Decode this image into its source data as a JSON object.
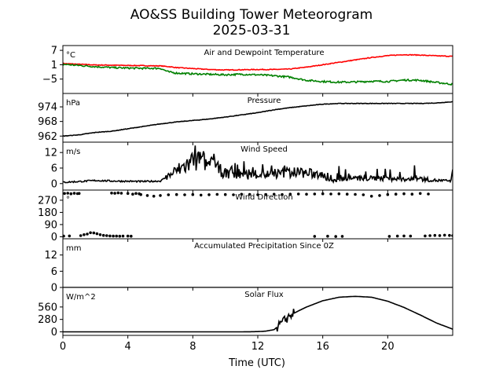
{
  "chart_data": {
    "type": "line",
    "title": "AO&SS Building Tower Meteorogram",
    "subtitle": "2025-03-31",
    "xlabel": "Time (UTC)",
    "x_ticks": [
      0,
      4,
      8,
      12,
      16,
      20
    ],
    "xlim": [
      0,
      24
    ],
    "panels": [
      {
        "id": "temperature",
        "title": "Air and Dewpoint Temperature",
        "unit": "°C",
        "ylim": [
          -11,
          9
        ],
        "y_ticks": [
          7,
          1,
          -5
        ],
        "y_tick_labels": [
          "7",
          "1",
          "−5"
        ],
        "series": [
          {
            "color": "#ff0000",
            "noise": 0.15,
            "x": [
              0,
              1,
              2,
              3,
              4,
              5,
              6,
              6.5,
              7,
              8,
              9,
              10,
              11,
              12,
              13,
              14,
              15,
              16,
              17,
              18,
              19,
              20,
              21,
              22,
              23,
              24
            ],
            "y": [
              1.5,
              1.2,
              0.9,
              0.8,
              0.7,
              0.6,
              0.5,
              0.2,
              -0.2,
              -0.6,
              -1.0,
              -1.2,
              -1.1,
              -1.0,
              -1.0,
              -0.8,
              0.0,
              1.0,
              2.0,
              3.0,
              4.0,
              4.8,
              5.2,
              5.0,
              4.7,
              4.5
            ]
          },
          {
            "color": "#008000",
            "noise": 0.35,
            "x": [
              0,
              1,
              2,
              3,
              4,
              5,
              6,
              6.5,
              7,
              8,
              9,
              10,
              11,
              12,
              13,
              14,
              15,
              16,
              17,
              18,
              19,
              20,
              21,
              22,
              23,
              24
            ],
            "y": [
              1.2,
              0.7,
              0.2,
              -0.2,
              -0.4,
              -0.5,
              -0.5,
              -2.0,
              -2.5,
              -2.8,
              -3.0,
              -3.2,
              -3.0,
              -3.2,
              -3.6,
              -4.2,
              -5.5,
              -6.0,
              -6.3,
              -6.2,
              -5.9,
              -6.0,
              -5.4,
              -5.5,
              -6.4,
              -7.2
            ]
          }
        ]
      },
      {
        "id": "pressure",
        "title": "Pressure",
        "unit": "hPa",
        "ylim": [
          959.5,
          979.5
        ],
        "y_ticks": [
          974,
          968,
          962
        ],
        "y_tick_labels": [
          "974",
          "968",
          "962"
        ],
        "series": [
          {
            "color": "#000000",
            "noise": 0.1,
            "x": [
              0,
              1,
              2,
              3,
              4,
              5,
              6,
              7,
              8,
              9,
              10,
              11,
              12,
              13,
              14,
              15,
              16,
              17,
              18,
              19,
              20,
              21,
              22,
              23,
              24
            ],
            "y": [
              962.0,
              962.5,
              963.5,
              964.0,
              965.0,
              966.0,
              967.0,
              967.8,
              968.4,
              969.0,
              969.8,
              970.7,
              971.6,
              972.8,
              973.7,
              974.4,
              975.1,
              975.4,
              975.4,
              975.4,
              975.4,
              975.4,
              975.4,
              975.6,
              976.1
            ]
          }
        ]
      },
      {
        "id": "wind_speed",
        "title": "Wind Speed",
        "unit": "m/s",
        "ylim": [
          -2.5,
          16
        ],
        "y_ticks": [
          12,
          6,
          0
        ],
        "y_tick_labels": [
          "12",
          "6",
          "0"
        ],
        "series": [
          {
            "color": "#000000",
            "noise": 0.0,
            "gusty": true,
            "x": [
              0,
              1,
              2,
              3,
              4,
              5,
              6,
              6.5,
              7,
              8,
              8.5,
              9,
              10,
              11,
              12,
              13,
              14,
              15,
              16,
              16.5,
              17,
              18,
              19,
              20,
              21,
              22,
              23,
              24
            ],
            "y": [
              0.5,
              0.8,
              1.2,
              1.0,
              0.9,
              0.8,
              1.0,
              3.0,
              5.0,
              8.5,
              9.0,
              7.5,
              4.0,
              3.0,
              3.5,
              3.5,
              4.5,
              4.0,
              3.5,
              0.8,
              1.5,
              2.0,
              2.0,
              2.2,
              1.5,
              1.8,
              1.2,
              1.0
            ]
          }
        ]
      },
      {
        "id": "wind_direction",
        "title": "Wind Direction",
        "unit": "°",
        "ylim": [
          -15,
          345
        ],
        "y_ticks": [
          270,
          180,
          90,
          0
        ],
        "y_tick_labels": [
          "270",
          "180",
          "90",
          "0"
        ],
        "scatter": true,
        "points": [
          [
            0.1,
            320
          ],
          [
            0.3,
            322
          ],
          [
            0.5,
            318
          ],
          [
            0.7,
            321
          ],
          [
            0.9,
            319
          ],
          [
            1.0,
            320
          ],
          [
            0.05,
            5
          ],
          [
            0.4,
            6
          ],
          [
            1.1,
            8
          ],
          [
            1.3,
            15
          ],
          [
            1.5,
            20
          ],
          [
            1.7,
            30
          ],
          [
            1.9,
            28
          ],
          [
            2.1,
            22
          ],
          [
            2.3,
            15
          ],
          [
            2.5,
            10
          ],
          [
            2.7,
            8
          ],
          [
            2.9,
            6
          ],
          [
            3.1,
            5
          ],
          [
            3.3,
            5
          ],
          [
            3.5,
            4
          ],
          [
            3.7,
            5
          ],
          [
            4.0,
            5
          ],
          [
            4.2,
            4
          ],
          [
            3.0,
            323
          ],
          [
            3.2,
            321
          ],
          [
            3.4,
            324
          ],
          [
            3.6,
            322
          ],
          [
            4.5,
            320
          ],
          [
            4.7,
            318
          ],
          [
            4.0,
            320
          ],
          [
            4.3,
            315
          ],
          [
            4.8,
            312
          ],
          [
            5.2,
            305
          ],
          [
            5.6,
            300
          ],
          [
            6.0,
            305
          ],
          [
            6.5,
            310
          ],
          [
            7.0,
            312
          ],
          [
            7.5,
            310
          ],
          [
            8.0,
            312
          ],
          [
            8.5,
            308
          ],
          [
            9.0,
            311
          ],
          [
            9.5,
            313
          ],
          [
            10.0,
            312
          ],
          [
            10.5,
            310
          ],
          [
            11.0,
            314
          ],
          [
            11.5,
            313
          ],
          [
            12.0,
            311
          ],
          [
            12.5,
            312
          ],
          [
            13.0,
            314
          ],
          [
            13.5,
            312
          ],
          [
            14.0,
            315
          ],
          [
            14.5,
            316
          ],
          [
            15.0,
            314
          ],
          [
            15.5,
            316
          ],
          [
            16.0,
            318
          ],
          [
            16.5,
            316
          ],
          [
            17.0,
            317
          ],
          [
            17.5,
            315
          ],
          [
            18.0,
            313
          ],
          [
            18.5,
            310
          ],
          [
            19.0,
            300
          ],
          [
            19.5,
            305
          ],
          [
            20.0,
            312
          ],
          [
            20.5,
            315
          ],
          [
            21.0,
            318
          ],
          [
            21.5,
            315
          ],
          [
            22.0,
            320
          ],
          [
            22.5,
            316
          ],
          [
            15.5,
            3
          ],
          [
            16.3,
            4
          ],
          [
            16.8,
            2
          ],
          [
            17.2,
            3
          ],
          [
            20.1,
            3
          ],
          [
            20.6,
            5
          ],
          [
            21.0,
            6
          ],
          [
            21.4,
            5
          ],
          [
            22.3,
            6
          ],
          [
            22.6,
            8
          ],
          [
            22.9,
            10
          ],
          [
            23.2,
            9
          ],
          [
            23.5,
            12
          ],
          [
            23.8,
            10
          ],
          [
            24.0,
            8
          ]
        ]
      },
      {
        "id": "precip",
        "title": "Accumulated Precipitation Since 0Z",
        "unit": "mm",
        "ylim": [
          0,
          18
        ],
        "y_ticks": [
          12,
          6,
          0
        ],
        "y_tick_labels": [
          "12",
          "6",
          "0"
        ],
        "series": [
          {
            "color": "#000000",
            "noise": 0.0,
            "x": [
              0,
              24
            ],
            "y": [
              0,
              0
            ]
          }
        ]
      },
      {
        "id": "solar",
        "title": "Solar Flux",
        "unit": "W/m^2",
        "ylim": [
          -80,
          1000
        ],
        "y_ticks": [
          560,
          280,
          0
        ],
        "y_tick_labels": [
          "560",
          "280",
          "0"
        ],
        "series": [
          {
            "color": "#000000",
            "noise": 0.0,
            "noise_window": [
              13.2,
              14.2
            ],
            "noise_amp": 110,
            "x": [
              0,
              11,
              11.5,
              12,
              12.5,
              13,
              13.5,
              14,
              14.5,
              15,
              16,
              17,
              18,
              19,
              20,
              21,
              22,
              23,
              24
            ],
            "y": [
              0,
              0,
              2,
              5,
              15,
              50,
              200,
              380,
              470,
              560,
              700,
              780,
              800,
              780,
              690,
              550,
              380,
              200,
              60
            ]
          }
        ]
      }
    ]
  }
}
